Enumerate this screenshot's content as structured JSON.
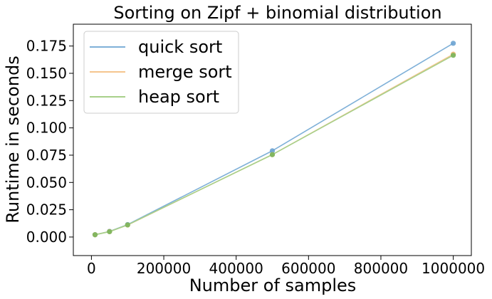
{
  "chart_data": {
    "type": "line",
    "title": "Sorting on Zipf + binomial distribution",
    "xlabel": "Number of samples",
    "ylabel": "Runtime in seconds",
    "x": [
      10000,
      50000,
      100000,
      500000,
      1000000
    ],
    "xlim": [
      -50000,
      1050000
    ],
    "ylim": [
      -0.017,
      0.195
    ],
    "xticks": [
      0,
      200000,
      400000,
      600000,
      800000,
      1000000
    ],
    "xtick_labels": [
      "0",
      "200000",
      "400000",
      "600000",
      "800000",
      "1000000"
    ],
    "yticks": [
      0.0,
      0.025,
      0.05,
      0.075,
      0.1,
      0.125,
      0.15,
      0.175
    ],
    "ytick_labels": [
      "0.000",
      "0.025",
      "0.050",
      "0.075",
      "0.100",
      "0.125",
      "0.150",
      "0.175"
    ],
    "grid": false,
    "legend_position": "top-left",
    "series": [
      {
        "name": "quick sort",
        "color": "#7fb0d8",
        "marker_color": "#6ba3d1",
        "values": [
          0.0021,
          0.0052,
          0.0114,
          0.079,
          0.1775
        ]
      },
      {
        "name": "merge sort",
        "color": "#f5c58e",
        "marker_color": "#f2b670",
        "values": [
          0.0021,
          0.005,
          0.011,
          0.0755,
          0.1675
        ]
      },
      {
        "name": "heap sort",
        "color": "#a7d08a",
        "marker_color": "#7ab55c",
        "values": [
          0.0021,
          0.0049,
          0.0111,
          0.0755,
          0.1665
        ]
      }
    ]
  }
}
